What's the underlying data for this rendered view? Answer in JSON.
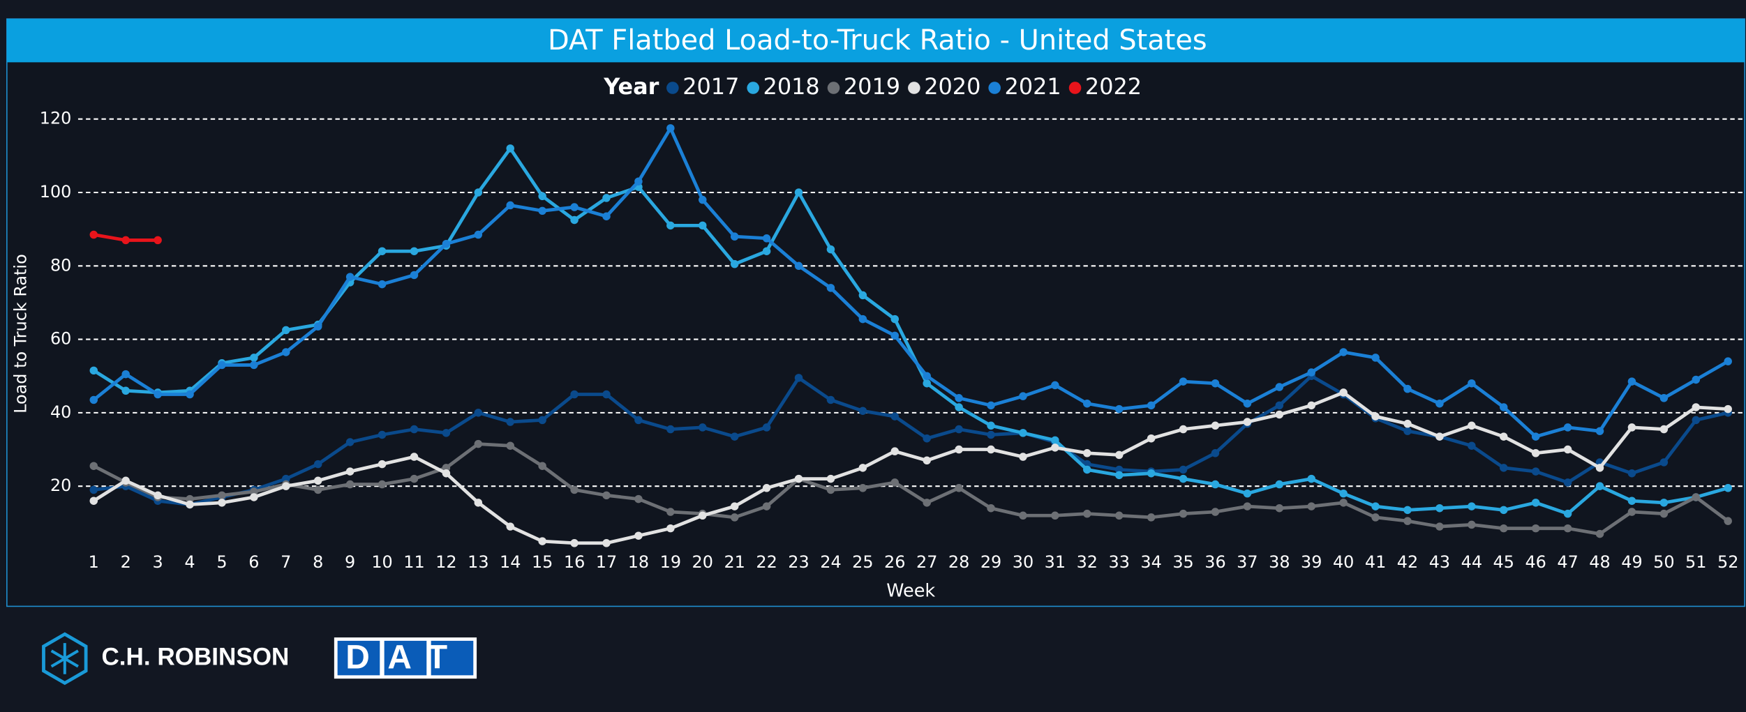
{
  "chart_data": {
    "type": "line",
    "title": "DAT Flatbed Load-to-Truck Ratio - United States",
    "legend_title": "Year",
    "xlabel": "Week",
    "ylabel": "Load to Truck Ratio",
    "x": [
      1,
      2,
      3,
      4,
      5,
      6,
      7,
      8,
      9,
      10,
      11,
      12,
      13,
      14,
      15,
      16,
      17,
      18,
      19,
      20,
      21,
      22,
      23,
      24,
      25,
      26,
      27,
      28,
      29,
      30,
      31,
      32,
      33,
      34,
      35,
      36,
      37,
      38,
      39,
      40,
      41,
      42,
      43,
      44,
      45,
      46,
      47,
      48,
      49,
      50,
      51,
      52
    ],
    "xlim": [
      1,
      52
    ],
    "xticks": [
      1,
      2,
      3,
      4,
      5,
      6,
      7,
      8,
      9,
      10,
      11,
      12,
      13,
      14,
      15,
      16,
      17,
      18,
      19,
      20,
      21,
      22,
      23,
      24,
      25,
      26,
      27,
      28,
      29,
      30,
      31,
      32,
      33,
      34,
      35,
      36,
      37,
      38,
      39,
      40,
      41,
      42,
      43,
      44,
      45,
      46,
      47,
      48,
      49,
      50,
      51,
      52
    ],
    "ylim": [
      0,
      125
    ],
    "yticks": [
      20,
      40,
      60,
      80,
      100,
      120
    ],
    "grid": true,
    "series": [
      {
        "name": "2017",
        "color": "#0a4a8c",
        "values": [
          19,
          20,
          16,
          15,
          17,
          19,
          22,
          26,
          32,
          34,
          35.5,
          34.5,
          40,
          37.5,
          38,
          45,
          45,
          38,
          35.5,
          36,
          33.5,
          36,
          49.5,
          43.5,
          40.5,
          39,
          33,
          35.5,
          34,
          34.5,
          32,
          26,
          24.5,
          24,
          24.5,
          29,
          37,
          42,
          50,
          45,
          38.5,
          35,
          33.5,
          31,
          25,
          24,
          21,
          26.5,
          23.5,
          26.5,
          38,
          40
        ]
      },
      {
        "name": "2018",
        "color": "#2aa8e0",
        "values": [
          51.5,
          46,
          45.5,
          46,
          53.5,
          55,
          62.5,
          64,
          75.5,
          84,
          84,
          85.5,
          100,
          112,
          99,
          92.5,
          98.5,
          101.5,
          91,
          91,
          80.5,
          84,
          100,
          84.5,
          72,
          65.5,
          48,
          41.5,
          36.5,
          34.5,
          32.5,
          24.5,
          23,
          23.5,
          22,
          20.5,
          18,
          20.5,
          22,
          18,
          14.5,
          13.5,
          14,
          14.5,
          13.5,
          15.5,
          12.5,
          20,
          16,
          15.5,
          17,
          19.5
        ]
      },
      {
        "name": "2019",
        "color": "#6d7075",
        "values": [
          25.5,
          21,
          17,
          16.5,
          17.5,
          18.5,
          20.5,
          19,
          20.5,
          20.5,
          22,
          25,
          31.5,
          31,
          25.5,
          19,
          17.5,
          16.5,
          13,
          12.5,
          11.5,
          14.5,
          22,
          19,
          19.5,
          21,
          15.5,
          19.5,
          14,
          12,
          12,
          12.5,
          12,
          11.5,
          12.5,
          13,
          14.5,
          14,
          14.5,
          15.5,
          11.5,
          10.5,
          9,
          9.5,
          8.5,
          8.5,
          8.5,
          7,
          13,
          12.5,
          17,
          10.5
        ]
      },
      {
        "name": "2020",
        "color": "#e2e2e2",
        "values": [
          16,
          21.5,
          17.5,
          15,
          15.5,
          17,
          20,
          21.5,
          24,
          26,
          28,
          23.5,
          15.5,
          9,
          5,
          4.5,
          4.5,
          6.5,
          8.5,
          12,
          14.5,
          19.5,
          22,
          22,
          25,
          29.5,
          27,
          30,
          30,
          28,
          30.5,
          29,
          28.5,
          33,
          35.5,
          36.5,
          37.5,
          39.5,
          42,
          45.5,
          39,
          37,
          33.5,
          36.5,
          33.5,
          29,
          30,
          25,
          36,
          35.5,
          41.5,
          41
        ]
      },
      {
        "name": "2021",
        "color": "#1b80d6",
        "values": [
          43.5,
          50.5,
          45,
          45,
          53,
          53,
          56.5,
          63.5,
          77,
          75,
          77.5,
          86,
          88.5,
          96.5,
          95,
          96,
          93.5,
          103,
          117.5,
          98,
          88,
          87.5,
          80,
          74,
          65.5,
          61,
          50,
          44,
          42,
          44.5,
          47.5,
          42.5,
          41,
          42,
          48.5,
          48,
          42.5,
          47,
          51,
          56.5,
          55,
          46.5,
          42.5,
          48,
          41.5,
          33.5,
          36,
          35,
          48.5,
          44,
          49,
          54
        ]
      },
      {
        "name": "2022",
        "color": "#e8141b",
        "values": [
          88.5,
          87,
          87,
          null,
          null,
          null,
          null,
          null,
          null,
          null,
          null,
          null,
          null,
          null,
          null,
          null,
          null,
          null,
          null,
          null,
          null,
          null,
          null,
          null,
          null,
          null,
          null,
          null,
          null,
          null,
          null,
          null,
          null,
          null,
          null,
          null,
          null,
          null,
          null,
          null,
          null,
          null,
          null,
          null,
          null,
          null,
          null,
          null,
          null,
          null,
          null,
          null
        ]
      }
    ]
  },
  "footer": {
    "logo_left": "C.H. ROBINSON",
    "logo_right": "DAT"
  }
}
